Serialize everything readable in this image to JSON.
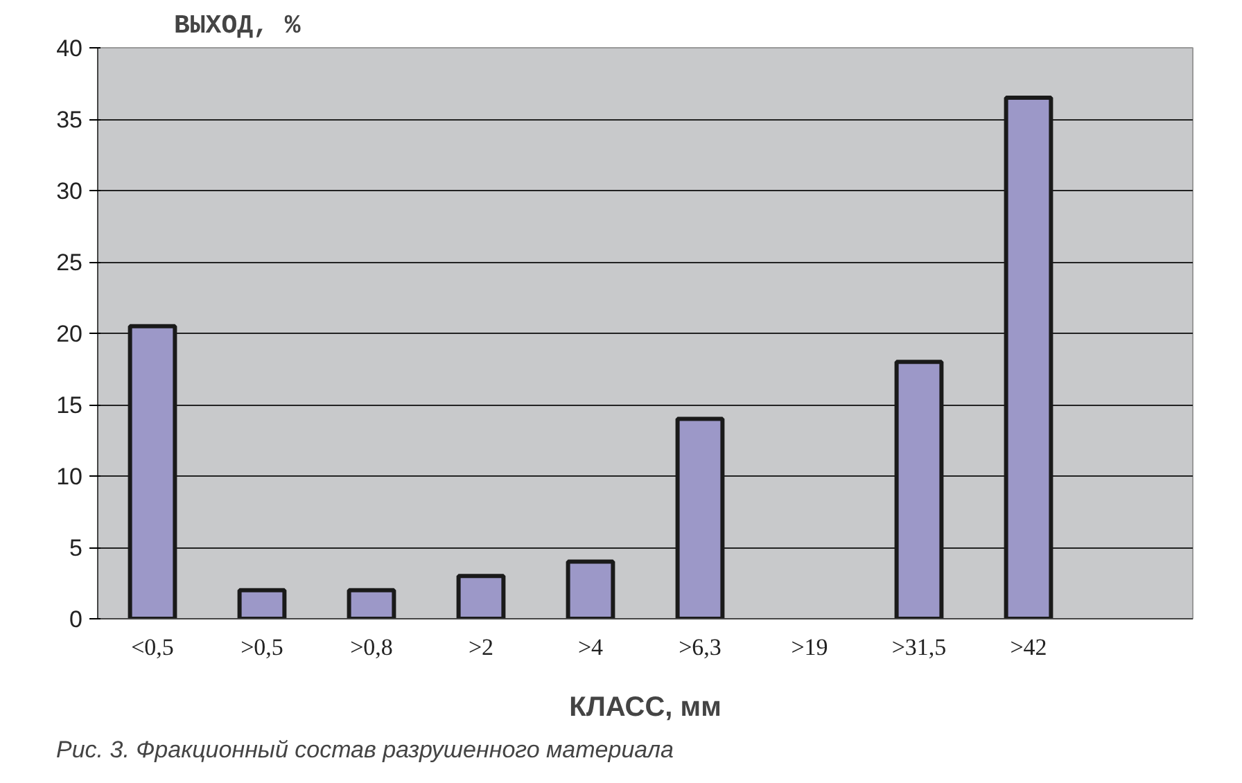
{
  "chart_data": {
    "type": "bar",
    "xlabel": "КЛАСС, мм",
    "ylabel": "ВЫХОД, %",
    "categories": [
      "<0,5",
      ">0,5",
      ">0,8",
      ">2",
      ">4",
      ">6,3",
      ">19",
      ">31,5",
      ">42",
      null
    ],
    "values": [
      20.5,
      2,
      2,
      3,
      4,
      14,
      null,
      18,
      36.5,
      null
    ],
    "color": "#9c98c8",
    "ylim": [
      0,
      40
    ],
    "yticks": [
      0,
      5,
      10,
      15,
      20,
      25,
      30,
      35,
      40
    ],
    "grid": "y",
    "annotations": [
      "Рис. 3. Фракционный состав разрушенного материала"
    ]
  }
}
